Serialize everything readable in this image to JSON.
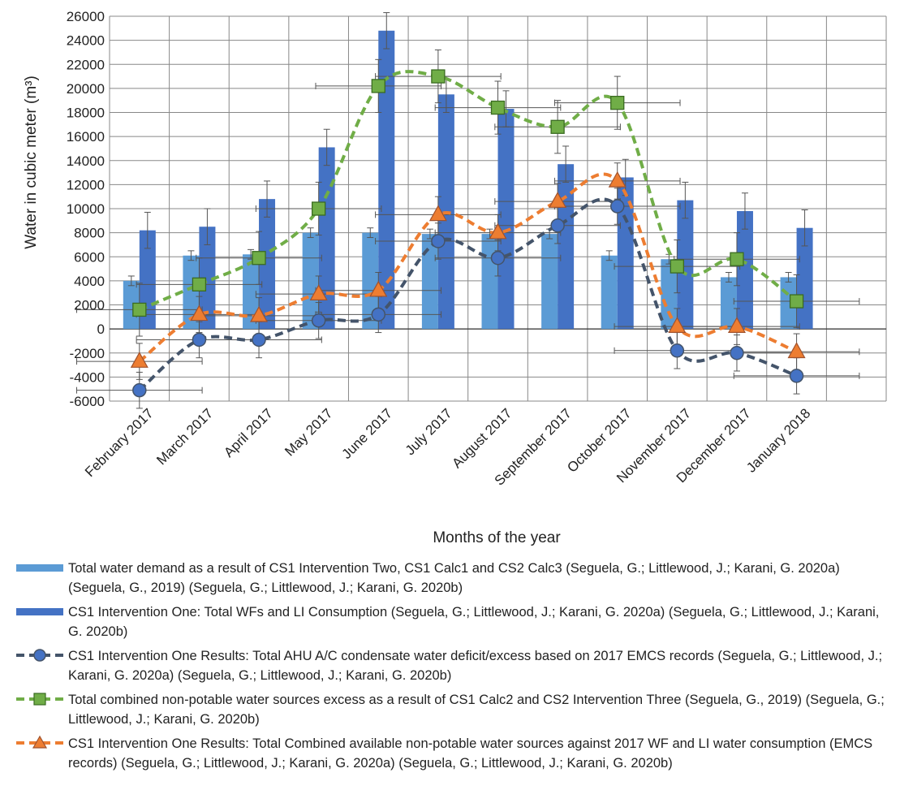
{
  "chart_data": {
    "type": "bar",
    "ylabel": "Water  in cubic meter (m³)",
    "xlabel": "Months of the year",
    "ylim": [
      -6000,
      26000
    ],
    "ytick_step": 2000,
    "grid": true,
    "legend_position": "bottom",
    "categories": [
      "February 2017",
      "March 2017",
      "April 2017",
      "May 2017",
      "June 2017",
      "July 2017",
      "August 2017",
      "September 2017",
      "October 2017",
      "November 2017",
      "December 2017",
      "January 2018"
    ],
    "bar_series": [
      {
        "name": "Total water demand as a result of CS1 Intervention Two, CS1 Calc1 and CS2 Calc3 (Seguela, G.; Littlewood, J.; Karani, G.  2020a) (Seguela, G., 2019) (Seguela, G.; Littlewood, J.; Karani, G.  2020b)",
        "color": "#5b9bd5",
        "values": [
          4000,
          6100,
          6200,
          8000,
          8000,
          7900,
          7900,
          7900,
          6100,
          5800,
          4300,
          4300
        ],
        "error": [
          400,
          400,
          400,
          400,
          400,
          400,
          400,
          400,
          400,
          400,
          400,
          400
        ]
      },
      {
        "name": "CS1 Intervention One: Total WFs and LI Consumption (Seguela, G.; Littlewood, J.; Karani, G.  2020a) (Seguela, G.; Littlewood, J.; Karani, G.  2020b)",
        "color": "#4472c4",
        "values": [
          8200,
          8500,
          10800,
          15100,
          24800,
          19500,
          18300,
          13700,
          12600,
          10700,
          9800,
          8400
        ],
        "error": [
          1500,
          1500,
          1500,
          1500,
          1500,
          1500,
          1500,
          1500,
          1500,
          1500,
          1500,
          1500
        ]
      }
    ],
    "line_series": [
      {
        "name": "CS1 Intervention One Results: Total AHU A/C condensate water deficit/excess based on 2017 EMCS records (Seguela, G.; Littlewood, J.; Karani, G.  2020a) (Seguela, G.; Littlewood, J.; Karani, G.  2020b)",
        "color": "#44546a",
        "marker": "circle",
        "marker_fill": "#4472c4",
        "values": [
          -5100,
          -900,
          -900,
          700,
          1200,
          7300,
          5900,
          8600,
          10200,
          -1800,
          -2000,
          -3900
        ],
        "error": [
          1500,
          1500,
          1500,
          1500,
          1500,
          1500,
          1500,
          1500,
          1500,
          1500,
          1500,
          1500
        ]
      },
      {
        "name": "Total combined non-potable water sources excess as a result of CS1 Calc2 and CS2 Intervention Three (Seguela, G., 2019) (Seguela, G.; Littlewood, J.; Karani, G.  2020b)",
        "color": "#70ad47",
        "marker": "square",
        "marker_fill": "#70ad47",
        "values": [
          1600,
          3700,
          5900,
          10000,
          20200,
          21000,
          18400,
          16800,
          18800,
          5200,
          5800,
          2300
        ],
        "error": [
          2200,
          2200,
          2200,
          2200,
          2200,
          2200,
          2200,
          2200,
          2200,
          2200,
          2200,
          2200
        ]
      },
      {
        "name": "CS1 Intervention One Results: Total Combined available non-potable water sources against 2017 WF and LI water consumption (EMCS records) (Seguela, G.; Littlewood, J.; Karani, G.  2020a) (Seguela, G.; Littlewood, J.; Karani, G.  2020b)",
        "color": "#ed7d31",
        "marker": "triangle",
        "marker_fill": "#ed7d31",
        "values": [
          -2700,
          1200,
          1100,
          2900,
          3200,
          9500,
          8000,
          10600,
          12300,
          200,
          200,
          -1900
        ],
        "error": [
          1500,
          1500,
          1500,
          1500,
          1500,
          1500,
          1500,
          1500,
          1500,
          1500,
          1500,
          1500
        ]
      }
    ]
  }
}
